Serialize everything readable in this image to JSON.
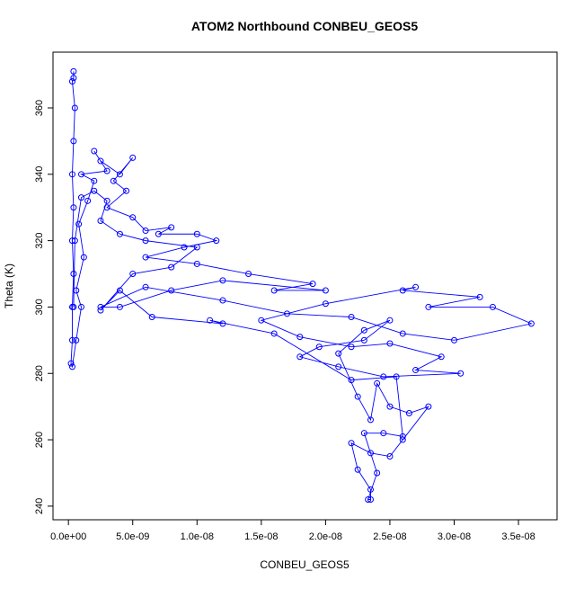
{
  "chart_data": {
    "type": "line",
    "title": "ATOM2 Northbound CONBEU_GEOS5",
    "xlabel": "CONBEU_GEOS5",
    "ylabel": "Theta (K)",
    "xlim": [
      -1.2e-09,
      3.8e-08
    ],
    "ylim": [
      235.9,
      376.8
    ],
    "xticks": [
      {
        "value": 0,
        "label": "0.0e+00"
      },
      {
        "value": 5e-09,
        "label": "5.0e-09"
      },
      {
        "value": 1e-08,
        "label": "1.0e-08"
      },
      {
        "value": 1.5e-08,
        "label": "1.5e-08"
      },
      {
        "value": 2e-08,
        "label": "2.0e-08"
      },
      {
        "value": 2.5e-08,
        "label": "2.5e-08"
      },
      {
        "value": 3e-08,
        "label": "3.0e-08"
      },
      {
        "value": 3.5e-08,
        "label": "3.5e-08"
      }
    ],
    "yticks": [
      240,
      260,
      280,
      300,
      320,
      340,
      360
    ],
    "series": [
      {
        "color": "#0000ff",
        "x": [
          4e-10,
          4e-10,
          3e-10,
          5e-10,
          4e-10,
          3e-10,
          4e-10,
          3e-10,
          4e-10,
          3e-10,
          3e-10,
          2e-10,
          3e-10,
          6e-10,
          1e-09,
          6e-10,
          1.2e-09,
          8e-10,
          1.5e-09,
          2e-09,
          1e-09,
          3e-09,
          2e-09,
          2.5e-09,
          4e-09,
          5e-09,
          3.5e-09,
          4.5e-09,
          3e-09,
          5e-09,
          6e-09,
          8e-09,
          7e-09,
          1e-08,
          1.15e-08,
          9e-09,
          6e-09,
          1e-08,
          1.4e-08,
          1.9e-08,
          1.6e-08,
          2e-08,
          1.2e-08,
          8e-09,
          4e-09,
          2.5e-09,
          6e-09,
          1.2e-08,
          1.7e-08,
          2.2e-08,
          2.6e-08,
          3e-08,
          3.6e-08,
          3.3e-08,
          2.8e-08,
          3.2e-08,
          2.6e-08,
          2.7e-08,
          2e-08,
          1.5e-08,
          1.8e-08,
          2.2e-08,
          2.5e-08,
          2.9e-08,
          2.7e-08,
          3.05e-08,
          2.45e-08,
          2.1e-08,
          1.8e-08,
          1.95e-08,
          2.3e-08,
          2.5e-08,
          2.3e-08,
          2.1e-08,
          2.25e-08,
          2.35e-08,
          2.4e-08,
          2.5e-08,
          2.65e-08,
          2.8e-08,
          2.6e-08,
          2.5e-08,
          2.35e-08,
          2.2e-08,
          2.25e-08,
          2.35e-08,
          2.35e-08,
          2.33e-08,
          2.4e-08,
          2.3e-08,
          2.45e-08,
          2.6e-08,
          2.55e-08,
          2.2e-08,
          1.6e-08,
          1.1e-08,
          1.2e-08,
          6.5e-09,
          4e-09,
          2.5e-09,
          5e-09,
          8e-09,
          1e-08,
          6e-09,
          4e-09,
          2.5e-09,
          3e-09,
          2e-09,
          1e-09,
          5e-10,
          4e-10
        ],
        "values": [
          371,
          369,
          368,
          360,
          350,
          340,
          330,
          320,
          310,
          300,
          290,
          283,
          282,
          290,
          300,
          305,
          315,
          325,
          332,
          338,
          340,
          341,
          347,
          344,
          340,
          345,
          338,
          335,
          330,
          327,
          323,
          324,
          322,
          322,
          320,
          318,
          315,
          313,
          310,
          307,
          305,
          305,
          308,
          305,
          300,
          300,
          306,
          302,
          298,
          297,
          292,
          290,
          295,
          300,
          300,
          303,
          305,
          306,
          301,
          296,
          291,
          288,
          289,
          285,
          281,
          280,
          279,
          282,
          285,
          288,
          290,
          296,
          293,
          286,
          273,
          266,
          277,
          270,
          268,
          270,
          260,
          255,
          256,
          259,
          251,
          245,
          242,
          242,
          250,
          262,
          262,
          261,
          279,
          278,
          292,
          296,
          295,
          297,
          305,
          299,
          310,
          312,
          318,
          320,
          322,
          326,
          332,
          335,
          333,
          320,
          300
        ]
      }
    ]
  }
}
